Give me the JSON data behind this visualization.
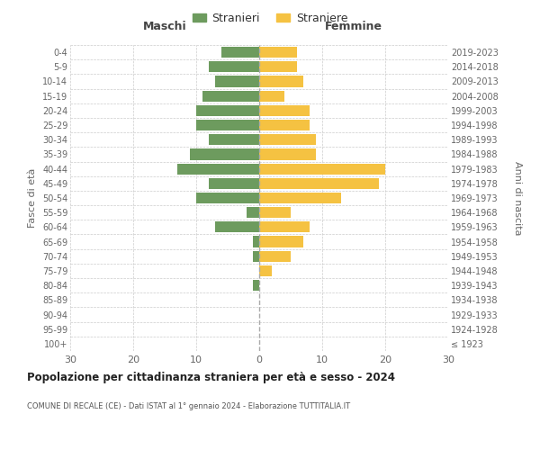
{
  "age_groups": [
    "100+",
    "95-99",
    "90-94",
    "85-89",
    "80-84",
    "75-79",
    "70-74",
    "65-69",
    "60-64",
    "55-59",
    "50-54",
    "45-49",
    "40-44",
    "35-39",
    "30-34",
    "25-29",
    "20-24",
    "15-19",
    "10-14",
    "5-9",
    "0-4"
  ],
  "birth_years": [
    "≤ 1923",
    "1924-1928",
    "1929-1933",
    "1934-1938",
    "1939-1943",
    "1944-1948",
    "1949-1953",
    "1954-1958",
    "1959-1963",
    "1964-1968",
    "1969-1973",
    "1974-1978",
    "1979-1983",
    "1984-1988",
    "1989-1993",
    "1994-1998",
    "1999-2003",
    "2004-2008",
    "2009-2013",
    "2014-2018",
    "2019-2023"
  ],
  "maschi": [
    0,
    0,
    0,
    0,
    1,
    0,
    1,
    1,
    7,
    2,
    10,
    8,
    13,
    11,
    8,
    10,
    10,
    9,
    7,
    8,
    6
  ],
  "femmine": [
    0,
    0,
    0,
    0,
    0,
    2,
    5,
    7,
    8,
    5,
    13,
    19,
    20,
    9,
    9,
    8,
    8,
    4,
    7,
    6,
    6
  ],
  "maschi_color": "#6d9b5e",
  "femmine_color": "#f5c242",
  "background_color": "#ffffff",
  "grid_color": "#cccccc",
  "title": "Popolazione per cittadinanza straniera per età e sesso - 2024",
  "subtitle": "COMUNE DI RECALE (CE) - Dati ISTAT al 1° gennaio 2024 - Elaborazione TUTTITALIA.IT",
  "xlabel_left": "Maschi",
  "xlabel_right": "Femmine",
  "ylabel_left": "Fasce di età",
  "ylabel_right": "Anni di nascita",
  "legend_maschi": "Stranieri",
  "legend_femmine": "Straniere",
  "xlim": 30,
  "bar_height": 0.75
}
